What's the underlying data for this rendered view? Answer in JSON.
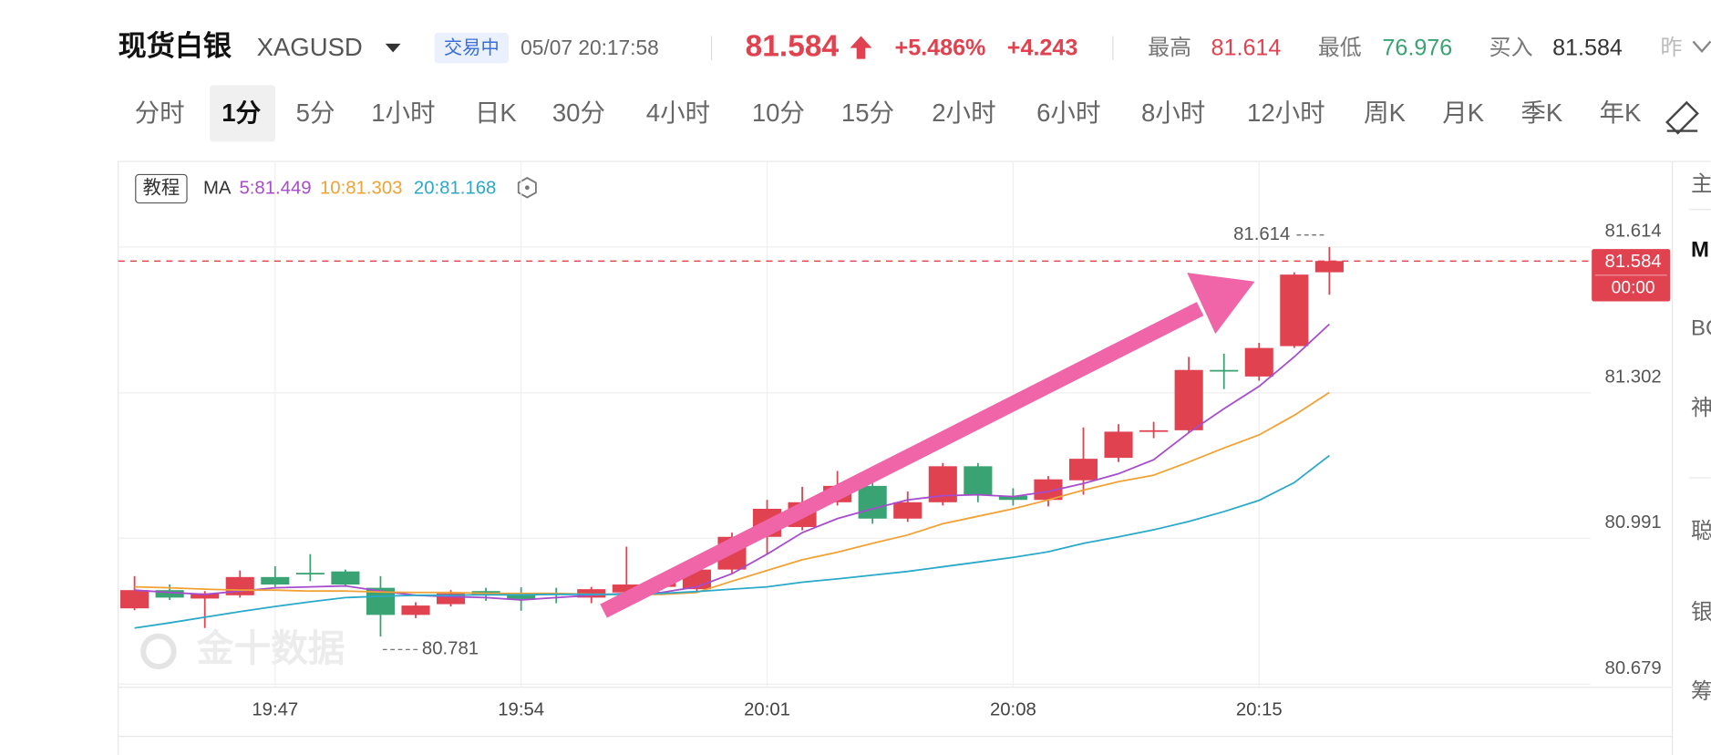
{
  "header": {
    "name": "现货白银",
    "symbol": "XAGUSD",
    "status": "交易中",
    "time": "05/07 20:17:58",
    "price": "81.584",
    "change_pct": "+5.486%",
    "change": "+4.243",
    "high_label": "最高",
    "high": "81.614",
    "low_label": "最低",
    "low": "76.976",
    "bid_label": "买入",
    "bid": "81.584",
    "prev_label": "昨"
  },
  "tabs": {
    "items": [
      {
        "label": "分时",
        "active": false
      },
      {
        "label": "1分",
        "active": true
      },
      {
        "label": "5分",
        "active": false
      },
      {
        "label": "1小时",
        "active": false
      },
      {
        "label": "日K",
        "active": false
      },
      {
        "label": "30分",
        "active": false
      },
      {
        "label": "4小时",
        "active": false
      },
      {
        "label": "10分",
        "active": false
      },
      {
        "label": "15分",
        "active": false
      },
      {
        "label": "2小时",
        "active": false
      },
      {
        "label": "6小时",
        "active": false
      },
      {
        "label": "8小时",
        "active": false
      },
      {
        "label": "12小时",
        "active": false
      },
      {
        "label": "周K",
        "active": false
      },
      {
        "label": "月K",
        "active": false
      },
      {
        "label": "季K",
        "active": false
      },
      {
        "label": "年K",
        "active": false
      }
    ]
  },
  "side_panel": [
    "主",
    "M",
    "BC",
    "神",
    "聪",
    "银",
    "筹"
  ],
  "chart_data": {
    "type": "candlestick",
    "tutorial": "教程",
    "legend": {
      "title": "MA",
      "items": [
        "5:81.449",
        "10:81.303",
        "20:81.168"
      ]
    },
    "watermark": "金十数据",
    "countdown": "00:00",
    "up_color": "#e0424f",
    "down_color": "#3aa374",
    "categories": [
      null,
      null,
      null,
      null,
      "19:47",
      null,
      null,
      null,
      null,
      null,
      null,
      "19:54",
      null,
      null,
      null,
      null,
      null,
      null,
      "20:01",
      null,
      null,
      null,
      null,
      null,
      null,
      "20:08",
      null,
      null,
      null,
      null,
      null,
      null,
      "20:15",
      null,
      null
    ],
    "open": [
      80.841,
      80.88,
      80.862,
      80.869,
      80.908,
      80.917,
      80.92,
      80.885,
      80.827,
      80.85,
      80.878,
      80.874,
      80.873,
      80.864,
      80.875,
      80.887,
      80.882,
      80.924,
      80.994,
      81.015,
      81.068,
      81.103,
      81.033,
      81.068,
      81.145,
      81.082,
      81.073,
      81.115,
      81.163,
      81.219,
      81.222,
      81.351,
      81.337,
      81.402,
      81.56
    ],
    "high": [
      80.91,
      80.892,
      80.878,
      80.922,
      80.931,
      80.957,
      80.924,
      80.91,
      80.854,
      80.88,
      80.885,
      80.886,
      80.885,
      80.887,
      80.973,
      80.915,
      80.933,
      81.003,
      81.073,
      81.101,
      81.135,
      81.119,
      81.091,
      81.152,
      81.152,
      81.098,
      81.124,
      81.228,
      81.235,
      81.24,
      81.379,
      81.386,
      81.409,
      81.56,
      81.614
    ],
    "low": [
      80.837,
      80.859,
      80.799,
      80.864,
      80.887,
      80.899,
      80.887,
      80.781,
      80.82,
      80.845,
      80.857,
      80.836,
      80.852,
      80.852,
      80.869,
      80.88,
      80.875,
      80.915,
      80.957,
      81.008,
      81.061,
      81.022,
      81.026,
      81.061,
      81.068,
      81.061,
      81.059,
      81.084,
      81.154,
      81.205,
      81.217,
      81.31,
      81.328,
      81.398,
      81.512
    ],
    "close": [
      80.88,
      80.864,
      80.873,
      80.908,
      80.892,
      80.915,
      80.892,
      80.827,
      80.847,
      80.873,
      80.869,
      80.861,
      80.872,
      80.882,
      80.892,
      80.898,
      80.924,
      80.994,
      81.054,
      81.068,
      81.103,
      81.033,
      81.068,
      81.145,
      81.084,
      81.073,
      81.117,
      81.161,
      81.219,
      81.222,
      81.351,
      81.349,
      81.398,
      81.555,
      81.584
    ],
    "series": [
      {
        "color": "#a64ccc",
        "values": [
          80.88,
          80.875,
          80.871,
          80.878,
          80.885,
          80.887,
          80.889,
          80.878,
          80.869,
          80.866,
          80.864,
          80.859,
          80.864,
          80.869,
          80.873,
          80.875,
          80.887,
          80.915,
          80.957,
          81.003,
          81.033,
          81.054,
          81.073,
          81.082,
          81.084,
          81.08,
          81.091,
          81.108,
          81.129,
          81.159,
          81.217,
          81.268,
          81.316,
          81.379,
          81.449
        ]
      },
      {
        "color": "#f0a234",
        "values": [
          80.887,
          80.885,
          80.882,
          80.88,
          80.88,
          80.878,
          80.878,
          80.876,
          80.875,
          80.875,
          80.873,
          80.873,
          80.873,
          80.871,
          80.871,
          80.871,
          80.875,
          80.899,
          80.922,
          80.945,
          80.961,
          80.98,
          80.998,
          81.022,
          81.038,
          81.054,
          81.073,
          81.094,
          81.112,
          81.126,
          81.154,
          81.184,
          81.212,
          81.254,
          81.303
        ]
      },
      {
        "color": "#2aa9c9",
        "values": [
          80.799,
          80.81,
          80.822,
          80.834,
          80.845,
          80.855,
          80.864,
          80.867,
          80.869,
          80.869,
          80.87,
          80.87,
          80.871,
          80.871,
          80.871,
          80.873,
          80.877,
          80.882,
          80.887,
          80.897,
          80.904,
          80.912,
          80.92,
          80.93,
          80.94,
          80.95,
          80.962,
          80.98,
          80.994,
          81.009,
          81.027,
          81.048,
          81.072,
          81.11,
          81.168
        ]
      }
    ],
    "ylim": [
      80.672,
      81.797
    ],
    "yticks": [
      80.679,
      80.991,
      81.302,
      81.614
    ],
    "grid": true
  }
}
